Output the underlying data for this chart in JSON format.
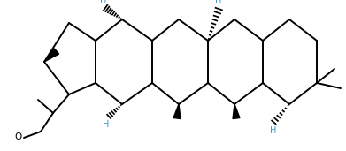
{
  "figsize": [
    3.91,
    1.71
  ],
  "dpi": 100,
  "bg_color": "#ffffff",
  "lw": 1.4,
  "lw_wedge": 0.8,
  "H_color": "#3399cc",
  "bond_color": "#000000",
  "xlim": [
    0,
    391
  ],
  "ylim": [
    0,
    171
  ]
}
